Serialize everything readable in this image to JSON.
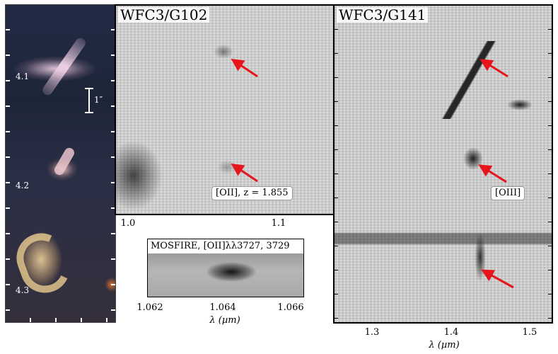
{
  "left_strip": {
    "ids": [
      "4.1",
      "4.2",
      "4.3"
    ],
    "scale_bar": "1″"
  },
  "g102": {
    "title": "WFC3/G102",
    "annotation": "[OII], z = 1.855",
    "x_ticks": [
      "1.0",
      "1.1"
    ]
  },
  "g141": {
    "title": "WFC3/G141",
    "annotation": "[OIII]",
    "x_ticks": [
      "1.3",
      "1.4",
      "1.5"
    ],
    "xlabel": "λ (µm)"
  },
  "mosfire": {
    "title": "MOSFIRE, [OII]λλ3727, 3729",
    "x_ticks": [
      "1.062",
      "1.064",
      "1.066"
    ],
    "xlabel": "λ (µm)"
  },
  "colors": {
    "arrow": "#e8141c",
    "noise_bg": "#dedede",
    "galaxy_sky": "#1c2436"
  }
}
